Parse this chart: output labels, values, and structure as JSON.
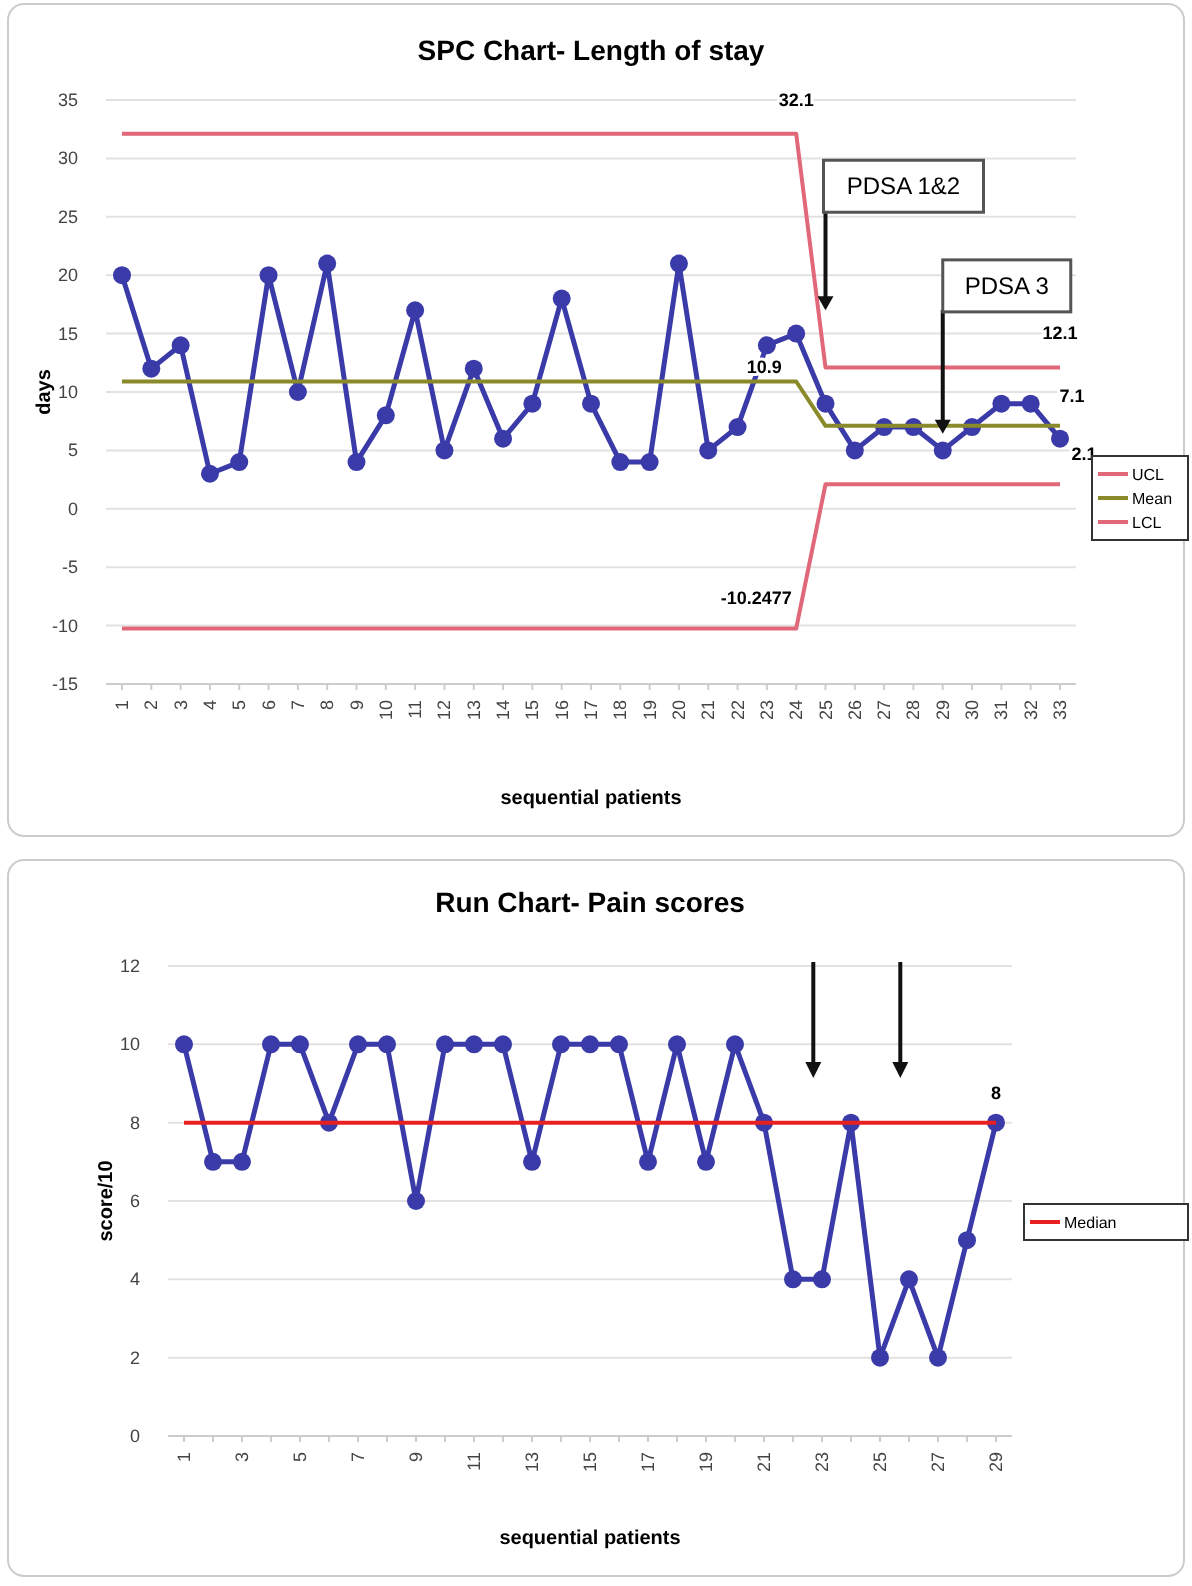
{
  "chart_data": [
    {
      "type": "line",
      "title": "SPC Chart- Length of stay",
      "xlabel": "sequential patients",
      "ylabel": "days",
      "categories": [
        "1",
        "2",
        "3",
        "4",
        "5",
        "6",
        "7",
        "8",
        "9",
        "10",
        "11",
        "12",
        "13",
        "14",
        "15",
        "16",
        "17",
        "18",
        "19",
        "20",
        "21",
        "22",
        "23",
        "24",
        "25",
        "26",
        "27",
        "28",
        "29",
        "30",
        "31",
        "32",
        "33"
      ],
      "series": [
        {
          "color": "#3a3aa8",
          "marker": "circle",
          "values": [
            20,
            12,
            14,
            3,
            4,
            20,
            10,
            21,
            4,
            8,
            17,
            5,
            12,
            6,
            9,
            18,
            9,
            4,
            4,
            21,
            5,
            7,
            14,
            15,
            9,
            5,
            7,
            7,
            5,
            7,
            9,
            9,
            6
          ]
        },
        {
          "name": "UCL",
          "color": "#e06878",
          "marker": "none",
          "values": [
            32.1,
            32.1,
            32.1,
            32.1,
            32.1,
            32.1,
            32.1,
            32.1,
            32.1,
            32.1,
            32.1,
            32.1,
            32.1,
            32.1,
            32.1,
            32.1,
            32.1,
            32.1,
            32.1,
            32.1,
            32.1,
            32.1,
            32.1,
            32.1,
            12.1,
            12.1,
            12.1,
            12.1,
            12.1,
            12.1,
            12.1,
            12.1,
            12.1
          ]
        },
        {
          "name": "Mean",
          "color": "#8a8a2a",
          "marker": "none",
          "values": [
            10.9,
            10.9,
            10.9,
            10.9,
            10.9,
            10.9,
            10.9,
            10.9,
            10.9,
            10.9,
            10.9,
            10.9,
            10.9,
            10.9,
            10.9,
            10.9,
            10.9,
            10.9,
            10.9,
            10.9,
            10.9,
            10.9,
            10.9,
            10.9,
            7.1,
            7.1,
            7.1,
            7.1,
            7.1,
            7.1,
            7.1,
            7.1,
            7.1
          ]
        },
        {
          "name": "LCL",
          "color": "#e06878",
          "marker": "none",
          "values": [
            -10.2477,
            -10.2477,
            -10.2477,
            -10.2477,
            -10.2477,
            -10.2477,
            -10.2477,
            -10.2477,
            -10.2477,
            -10.2477,
            -10.2477,
            -10.2477,
            -10.2477,
            -10.2477,
            -10.2477,
            -10.2477,
            -10.2477,
            -10.2477,
            -10.2477,
            -10.2477,
            -10.2477,
            -10.2477,
            -10.2477,
            -10.2477,
            2.1,
            2.1,
            2.1,
            2.1,
            2.1,
            2.1,
            2.1,
            2.1,
            2.1
          ]
        }
      ],
      "ylim": [
        -15,
        35
      ],
      "yticks": [
        -15,
        -10,
        -5,
        0,
        5,
        10,
        15,
        20,
        25,
        30,
        35
      ],
      "grid": "y",
      "legend": "right",
      "annotations": [
        {
          "text": "PDSA 1&2",
          "x": "25",
          "y": 17
        },
        {
          "text": "PDSA 3",
          "x": "29",
          "y": 7.1
        },
        {
          "text": "32.1",
          "x": "24",
          "y": 32.1
        },
        {
          "text": "10.9",
          "x": "24",
          "y": 10.9
        },
        {
          "text": "-10.2477",
          "x": "24",
          "y": -10.2477
        },
        {
          "text": "12.1",
          "x": "33",
          "y": 12.1
        },
        {
          "text": "7.1",
          "x": "33",
          "y": 7.1
        },
        {
          "text": "2.1",
          "x": "33",
          "y": 2.1
        }
      ]
    },
    {
      "type": "line",
      "title": "Run Chart- Pain scores",
      "xlabel": "sequential patients",
      "ylabel": "score/10",
      "categories": [
        "1",
        null,
        "3",
        null,
        "5",
        null,
        "7",
        null,
        "9",
        null,
        "11",
        null,
        "13",
        null,
        "15",
        null,
        "17",
        null,
        "19",
        null,
        "21",
        null,
        "23",
        null,
        "25",
        null,
        "27",
        null,
        "29"
      ],
      "series": [
        {
          "color": "#3a3aa8",
          "marker": "circle",
          "values": [
            10,
            7,
            7,
            10,
            10,
            8,
            10,
            10,
            6,
            10,
            10,
            10,
            7,
            10,
            10,
            10,
            7,
            10,
            7,
            10,
            8,
            4,
            4,
            8,
            2,
            4,
            2,
            5,
            8
          ]
        },
        {
          "name": "Median",
          "color": "#e82020",
          "marker": "none",
          "values": [
            8,
            8,
            8,
            8,
            8,
            8,
            8,
            8,
            8,
            8,
            8,
            8,
            8,
            8,
            8,
            8,
            8,
            8,
            8,
            8,
            8,
            8,
            8,
            8,
            8,
            8,
            8,
            8,
            8
          ]
        }
      ],
      "ylim": [
        0,
        12
      ],
      "yticks": [
        0,
        2,
        4,
        6,
        8,
        10,
        12
      ],
      "grid": "y",
      "legend": "right",
      "annotations": [
        {
          "text": "8",
          "x": "29",
          "y": 8
        }
      ]
    }
  ]
}
